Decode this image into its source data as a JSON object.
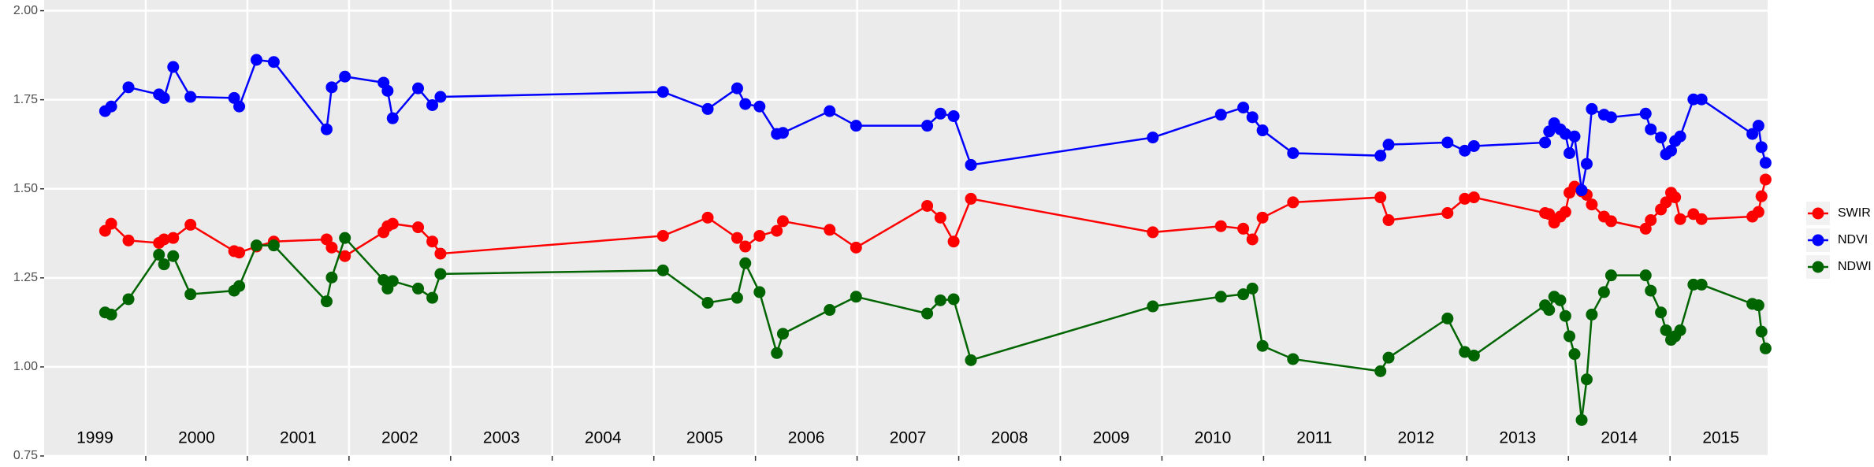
{
  "chart_data": {
    "type": "line",
    "x": [
      1999.6,
      1999.66,
      1999.83,
      2000.13,
      2000.18,
      2000.27,
      2000.44,
      2000.87,
      2000.92,
      2001.09,
      2001.26,
      2001.78,
      2001.83,
      2001.96,
      2002.34,
      2002.38,
      2002.43,
      2002.68,
      2002.82,
      2002.9,
      2005.09,
      2005.53,
      2005.82,
      2005.9,
      2006.04,
      2006.21,
      2006.27,
      2006.73,
      2006.99,
      2007.69,
      2007.82,
      2007.95,
      2008.12,
      2009.91,
      2010.58,
      2010.8,
      2010.89,
      2010.99,
      2011.29,
      2012.15,
      2012.23,
      2012.81,
      2012.98,
      2013.07,
      2013.77,
      2013.81,
      2013.86,
      2013.92,
      2013.97,
      2014.01,
      2014.06,
      2014.13,
      2014.18,
      2014.23,
      2014.35,
      2014.42,
      2014.76,
      2014.81,
      2014.91,
      2014.96,
      2015.01,
      2015.05,
      2015.1,
      2015.23,
      2015.31,
      2015.81,
      2015.87,
      2015.9,
      2015.94
    ],
    "series": [
      {
        "name": "SWIR",
        "color": "#ff0000",
        "values": [
          1.382,
          1.402,
          1.355,
          1.348,
          1.358,
          1.362,
          1.399,
          1.325,
          1.321,
          1.338,
          1.352,
          1.358,
          1.335,
          1.311,
          1.378,
          1.395,
          1.402,
          1.392,
          1.352,
          1.318,
          1.368,
          1.419,
          1.362,
          1.338,
          1.368,
          1.382,
          1.409,
          1.385,
          1.335,
          1.452,
          1.419,
          1.352,
          1.472,
          1.378,
          1.395,
          1.388,
          1.358,
          1.419,
          1.462,
          1.476,
          1.412,
          1.432,
          1.472,
          1.476,
          1.432,
          1.429,
          1.405,
          1.422,
          1.435,
          1.489,
          1.506,
          1.493,
          1.483,
          1.456,
          1.422,
          1.409,
          1.388,
          1.412,
          1.442,
          1.462,
          1.489,
          1.476,
          1.415,
          1.429,
          1.415,
          1.422,
          1.435,
          1.479,
          1.526
        ]
      },
      {
        "name": "NDVI",
        "color": "#0000ff",
        "values": [
          1.718,
          1.731,
          1.785,
          1.765,
          1.755,
          1.842,
          1.758,
          1.755,
          1.731,
          1.862,
          1.856,
          1.667,
          1.785,
          1.815,
          1.798,
          1.775,
          1.698,
          1.782,
          1.735,
          1.758,
          1.772,
          1.724,
          1.782,
          1.738,
          1.731,
          1.654,
          1.657,
          1.718,
          1.677,
          1.677,
          1.711,
          1.704,
          1.567,
          1.644,
          1.708,
          1.728,
          1.701,
          1.664,
          1.6,
          1.593,
          1.624,
          1.63,
          1.607,
          1.62,
          1.63,
          1.661,
          1.684,
          1.667,
          1.654,
          1.6,
          1.647,
          1.496,
          1.57,
          1.724,
          1.708,
          1.701,
          1.711,
          1.667,
          1.644,
          1.597,
          1.607,
          1.634,
          1.647,
          1.751,
          1.751,
          1.654,
          1.677,
          1.617,
          1.573
        ]
      },
      {
        "name": "NDWI",
        "color": "#006400",
        "values": [
          1.153,
          1.147,
          1.19,
          1.315,
          1.288,
          1.311,
          1.204,
          1.214,
          1.227,
          1.341,
          1.341,
          1.184,
          1.251,
          1.362,
          1.244,
          1.22,
          1.241,
          1.22,
          1.194,
          1.261,
          1.271,
          1.18,
          1.194,
          1.291,
          1.21,
          1.039,
          1.093,
          1.16,
          1.197,
          1.15,
          1.187,
          1.19,
          1.019,
          1.17,
          1.197,
          1.204,
          1.22,
          1.059,
          1.022,
          0.988,
          1.026,
          1.136,
          1.042,
          1.032,
          1.173,
          1.16,
          1.197,
          1.187,
          1.143,
          1.086,
          1.036,
          0.851,
          0.965,
          1.147,
          1.21,
          1.257,
          1.257,
          1.214,
          1.153,
          1.103,
          1.076,
          1.086,
          1.103,
          1.231,
          1.231,
          1.177,
          1.173,
          1.099,
          1.052
        ]
      }
    ],
    "xlim": [
      1999.0,
      2015.96
    ],
    "ylim": [
      0.75,
      2.03
    ],
    "xgrid": [
      2000,
      2001,
      2002,
      2003,
      2004,
      2005,
      2006,
      2007,
      2008,
      2009,
      2010,
      2011,
      2012,
      2013,
      2014,
      2015
    ],
    "xticks": [
      {
        "value": 1999.5,
        "label": "1999"
      },
      {
        "value": 2000.5,
        "label": "2000"
      },
      {
        "value": 2001.5,
        "label": "2001"
      },
      {
        "value": 2002.5,
        "label": "2002"
      },
      {
        "value": 2003.5,
        "label": "2003"
      },
      {
        "value": 2004.5,
        "label": "2004"
      },
      {
        "value": 2005.5,
        "label": "2005"
      },
      {
        "value": 2006.5,
        "label": "2006"
      },
      {
        "value": 2007.5,
        "label": "2007"
      },
      {
        "value": 2008.5,
        "label": "2008"
      },
      {
        "value": 2009.5,
        "label": "2009"
      },
      {
        "value": 2010.5,
        "label": "2010"
      },
      {
        "value": 2011.5,
        "label": "2011"
      },
      {
        "value": 2012.5,
        "label": "2012"
      },
      {
        "value": 2013.5,
        "label": "2013"
      },
      {
        "value": 2014.5,
        "label": "2014"
      },
      {
        "value": 2015.5,
        "label": "2015"
      }
    ],
    "yticks": [
      {
        "value": 0.75,
        "label": "0.75"
      },
      {
        "value": 1.0,
        "label": "1.00"
      },
      {
        "value": 1.25,
        "label": "1.25"
      },
      {
        "value": 1.5,
        "label": "1.50"
      },
      {
        "value": 1.75,
        "label": "1.75"
      },
      {
        "value": 2.0,
        "label": "2.00"
      }
    ],
    "grid": true,
    "legend": "right"
  }
}
